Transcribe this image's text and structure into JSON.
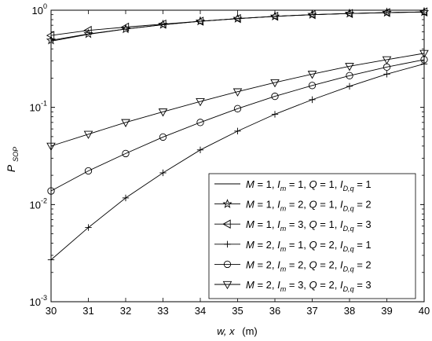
{
  "chart_data": {
    "type": "line",
    "y_scale": "log",
    "xlim": [
      30,
      40
    ],
    "ylim": [
      0.001,
      1
    ],
    "grid": false,
    "legend_position": "lower-right",
    "xticks": [
      30,
      31,
      32,
      33,
      34,
      35,
      36,
      37,
      38,
      39,
      40
    ],
    "x_tick_labels": [
      "30",
      "31",
      "32",
      "33",
      "34",
      "35",
      "36",
      "37",
      "38",
      "39",
      "40"
    ],
    "y_tick_labels": [
      {
        "value": 1,
        "base": "10",
        "exp": "0"
      },
      {
        "value": 0.1,
        "base": "10",
        "exp": "-1"
      },
      {
        "value": 0.01,
        "base": "10",
        "exp": "-2"
      },
      {
        "value": 0.001,
        "base": "10",
        "exp": "-3"
      }
    ],
    "xlabel": {
      "main": "w, x",
      "unit": "(m)"
    },
    "ylabel": {
      "main": "P",
      "sub": "SOP"
    },
    "x": [
      30,
      31,
      32,
      33,
      34,
      35,
      36,
      37,
      38,
      39,
      40
    ],
    "series": [
      {
        "marker": "none",
        "legend": {
          "M": "1",
          "Im": "1",
          "Q": "1",
          "ID": "1"
        },
        "values": [
          0.48,
          0.565,
          0.64,
          0.71,
          0.77,
          0.82,
          0.865,
          0.9,
          0.925,
          0.945,
          0.96
        ]
      },
      {
        "marker": "star",
        "legend": {
          "M": "1",
          "Im": "2",
          "Q": "1",
          "ID": "2"
        },
        "values": [
          0.49,
          0.57,
          0.64,
          0.71,
          0.77,
          0.82,
          0.865,
          0.9,
          0.925,
          0.945,
          0.96
        ]
      },
      {
        "marker": "triangle-left",
        "legend": {
          "M": "1",
          "Im": "3",
          "Q": "1",
          "ID": "3"
        },
        "values": [
          0.55,
          0.62,
          0.67,
          0.72,
          0.77,
          0.82,
          0.865,
          0.9,
          0.925,
          0.945,
          0.96
        ]
      },
      {
        "marker": "plus",
        "legend": {
          "M": "2",
          "Im": "1",
          "Q": "2",
          "ID": "1"
        },
        "values": [
          0.0027,
          0.0058,
          0.0117,
          0.0212,
          0.0365,
          0.057,
          0.085,
          0.12,
          0.165,
          0.22,
          0.28
        ]
      },
      {
        "marker": "circle",
        "legend": {
          "M": "2",
          "Im": "2",
          "Q": "2",
          "ID": "2"
        },
        "values": [
          0.0138,
          0.0222,
          0.0335,
          0.0495,
          0.07,
          0.097,
          0.13,
          0.168,
          0.212,
          0.26,
          0.31
        ]
      },
      {
        "marker": "triangle-down",
        "legend": {
          "M": "2",
          "Im": "3",
          "Q": "2",
          "ID": "3"
        },
        "values": [
          0.04,
          0.053,
          0.07,
          0.09,
          0.115,
          0.145,
          0.18,
          0.22,
          0.265,
          0.31,
          0.36
        ]
      }
    ],
    "legend_template": {
      "M_label": "M",
      "Im_label": "I",
      "Im_sub": "m",
      "Q_label": "Q",
      "ID_label": "I",
      "ID_sub": "D,q"
    }
  }
}
